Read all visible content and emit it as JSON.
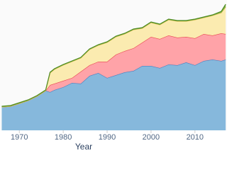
{
  "chart_data": {
    "type": "stacked_area",
    "x_label": "Year",
    "x": [
      1966,
      1968,
      1970,
      1972,
      1974,
      1976,
      1977,
      1978,
      1980,
      1982,
      1984,
      1986,
      1988,
      1990,
      1992,
      1994,
      1996,
      1998,
      2000,
      2002,
      2004,
      2006,
      2008,
      2010,
      2012,
      2014,
      2016,
      2017
    ],
    "series": [
      {
        "color": "#86b8dc",
        "line_color": "#4a7fc0",
        "values": [
          33,
          34,
          38,
          42,
          48,
          56,
          54,
          57,
          61,
          67,
          66,
          77,
          81,
          74,
          78,
          82,
          84,
          91,
          91,
          88,
          93,
          92,
          96,
          92,
          98,
          100,
          98,
          100
        ]
      },
      {
        "color": "#ffa3a8",
        "line_color": "#e8474f",
        "values": [
          0,
          0,
          0,
          0,
          0,
          0,
          10,
          9,
          9,
          7,
          17,
          15,
          16,
          23,
          29,
          30,
          32,
          33,
          41,
          41,
          41,
          39,
          36,
          38,
          38,
          34,
          39,
          36
        ]
      },
      {
        "color": "#fbebb0",
        "line_color": "#e6c65a",
        "values": [
          0,
          0,
          0,
          0,
          0,
          0,
          17,
          20,
          22,
          23,
          19,
          22,
          23,
          27,
          25,
          24,
          26,
          20,
          20,
          20,
          22,
          23,
          22,
          26,
          23,
          28,
          29,
          38
        ]
      },
      {
        "color": "#7fb24a",
        "line_color": "#4e8a22",
        "values": [
          1,
          1,
          1,
          1,
          1,
          1,
          1,
          1,
          1,
          1,
          1,
          1,
          1,
          1,
          1,
          1,
          1,
          1,
          1,
          1,
          1,
          1,
          1,
          1,
          1,
          1,
          2,
          4
        ]
      }
    ],
    "xlim": [
      1965.6,
      2017.3
    ],
    "xticks": [
      1970,
      1980,
      1990,
      2000,
      2010
    ],
    "ylim": [
      0,
      184
    ]
  }
}
